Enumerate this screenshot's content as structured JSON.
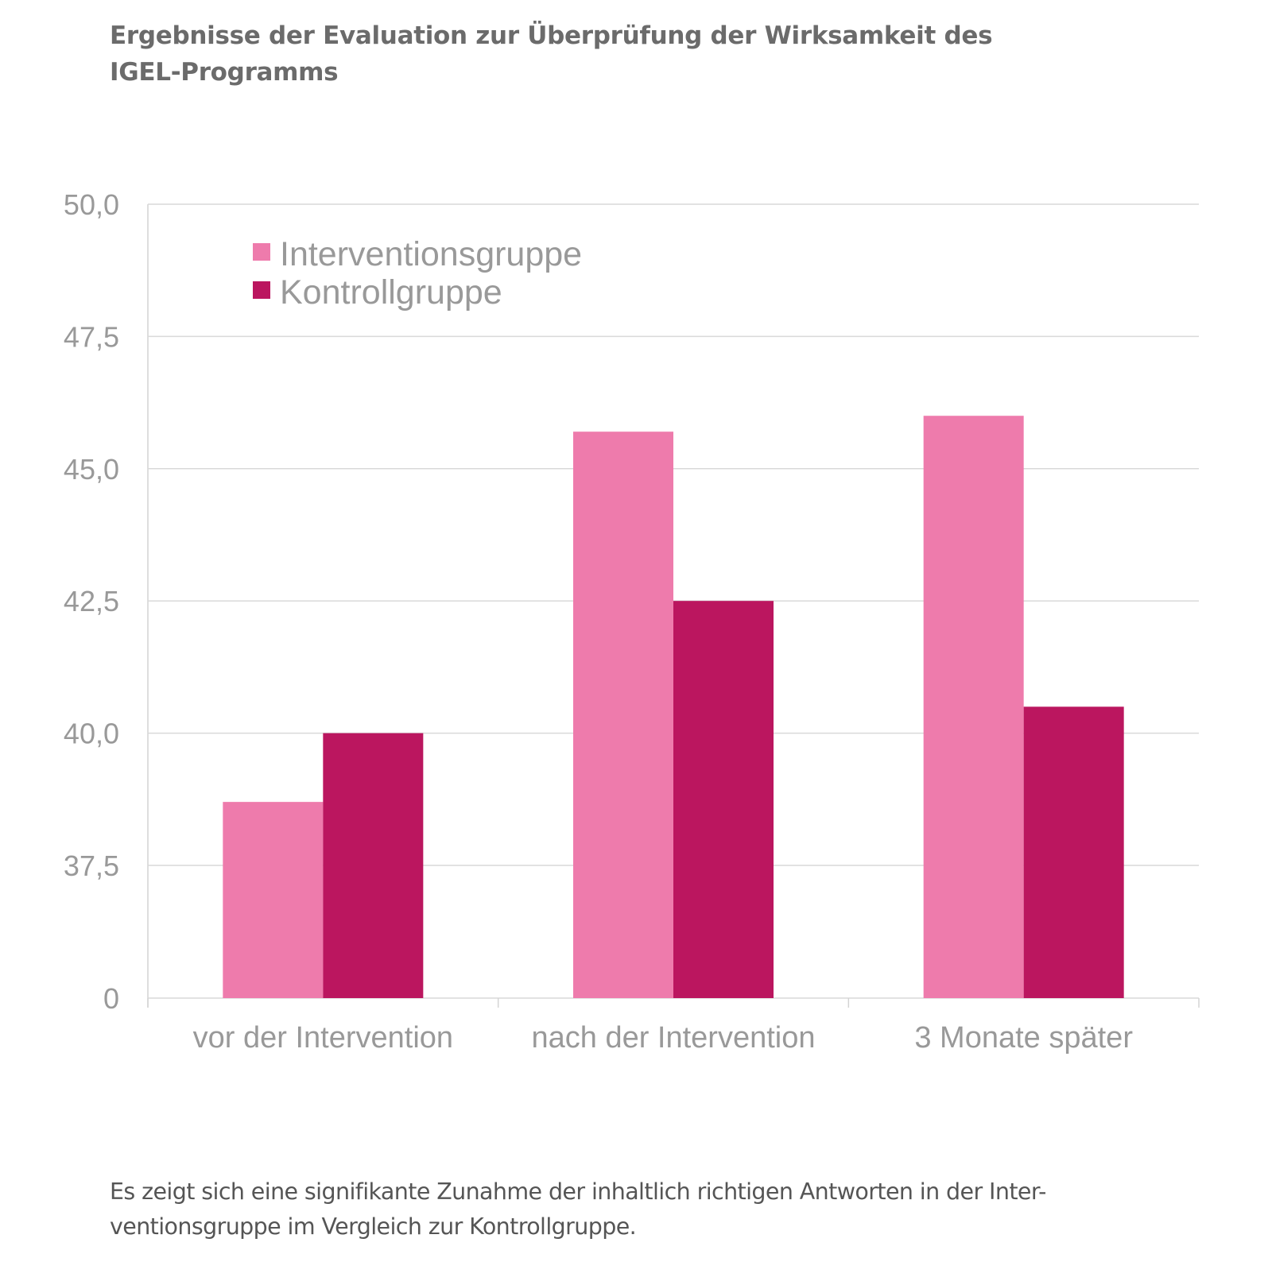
{
  "title_line1": "Ergebnisse der Evaluation zur Überprüfung der Wirksamkeit des",
  "title_line2": "IGEL-Programms",
  "caption_line1": "Es zeigt sich eine signifikante Zunahme der inhaltlich richtigen Antworten in der Inter-",
  "caption_line2": "ventionsgruppe im Vergleich zur Kontrollgruppe.",
  "chart_data": {
    "type": "bar",
    "title": "Ergebnisse der Evaluation zur Überprüfung der Wirksamkeit des IGEL-Programms",
    "xlabel": "",
    "ylabel": "",
    "categories": [
      "vor der Intervention",
      "nach der Intervention",
      "3 Monate später"
    ],
    "series": [
      {
        "name": "Interventionsgruppe",
        "color": "#ee7bac",
        "values": [
          38.7,
          45.7,
          46.0
        ]
      },
      {
        "name": "Kontrollgruppe",
        "color": "#bb165f",
        "values": [
          40.0,
          42.5,
          40.5
        ]
      }
    ],
    "yticks": [
      0,
      37.5,
      40.0,
      42.5,
      45.0,
      47.5,
      50.0
    ],
    "ytick_labels": [
      "0",
      "37,5",
      "40,0",
      "42,5",
      "45,0",
      "47,5",
      "50,0"
    ],
    "ylim": [
      0,
      50
    ],
    "axis_break": [
      0,
      37.5
    ],
    "grid": true,
    "legend_position": "top-left"
  }
}
